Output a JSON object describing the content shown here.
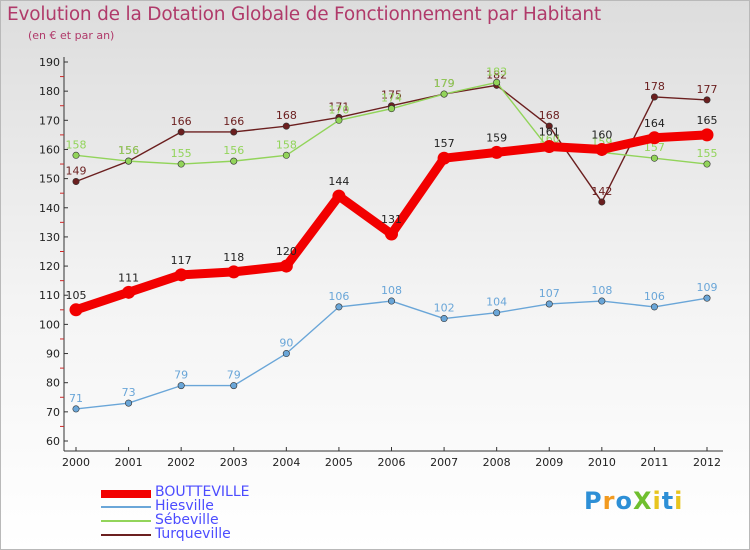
{
  "title": "Evolution de la Dotation Globale de Fonctionnement par Habitant",
  "subtitle": "(en € et par an)",
  "logo": {
    "text": "ProXiti",
    "letters": [
      {
        "ch": "P",
        "color": "#2d8fd6"
      },
      {
        "ch": "r",
        "color": "#f29a1f"
      },
      {
        "ch": "o",
        "color": "#2d8fd6"
      },
      {
        "ch": "X",
        "color": "#6fbf2f"
      },
      {
        "ch": "i",
        "color": "#e8c51e"
      },
      {
        "ch": "t",
        "color": "#2d8fd6"
      },
      {
        "ch": "i",
        "color": "#e8c51e"
      }
    ]
  },
  "chart_data": {
    "type": "line",
    "title": "Evolution de la Dotation Globale de Fonctionnement par Habitant",
    "subtitle": "(en € et par an)",
    "xlabel": "",
    "ylabel": "",
    "x": [
      "2000",
      "2001",
      "2002",
      "2003",
      "2004",
      "2005",
      "2006",
      "2007",
      "2008",
      "2009",
      "2010",
      "2011",
      "2012"
    ],
    "ylim": [
      60,
      190
    ],
    "yticks": [
      60,
      70,
      80,
      90,
      100,
      110,
      120,
      130,
      140,
      150,
      160,
      170,
      180,
      190
    ],
    "grid": false,
    "legend_position": "bottom-left",
    "series": [
      {
        "name": "Turqueville",
        "color": "#6b1f1f",
        "values": [
          149,
          156,
          166,
          166,
          168,
          171,
          175,
          179,
          182,
          168,
          142,
          178,
          177
        ]
      },
      {
        "name": "Sébeville",
        "color": "#92d45a",
        "values": [
          158,
          156,
          155,
          156,
          158,
          170,
          174,
          179,
          183,
          160,
          159,
          157,
          155
        ]
      },
      {
        "name": "Hiesville",
        "color": "#6aa6d8",
        "values": [
          71,
          73,
          79,
          79,
          90,
          106,
          108,
          102,
          104,
          107,
          108,
          106,
          109
        ]
      },
      {
        "name": "BOUTTEVILLE",
        "color": "#f20000",
        "values": [
          105,
          111,
          117,
          118,
          120,
          144,
          131,
          157,
          159,
          161,
          160,
          164,
          165
        ]
      }
    ]
  },
  "legend": [
    {
      "name": "BOUTTEVILLE",
      "color": "#f20000"
    },
    {
      "name": "Hiesville",
      "color": "#6aa6d8"
    },
    {
      "name": "Sébeville",
      "color": "#92d45a"
    },
    {
      "name": "Turqueville",
      "color": "#6b1f1f"
    }
  ]
}
